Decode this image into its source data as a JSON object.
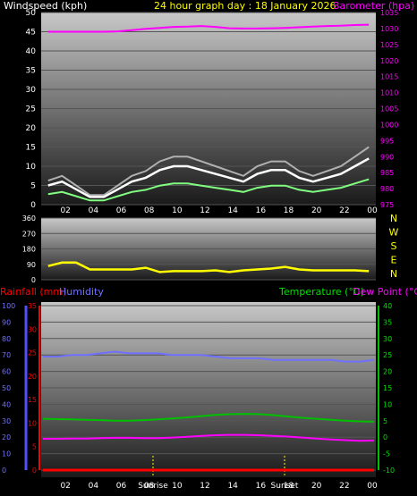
{
  "top": {
    "windspeed_label": "Windspeed (kph)",
    "title": "24 hour graph day : 18 January 2026",
    "barometer_label": "Barometer (hpa)",
    "wind_ticks": [
      "0",
      "5",
      "10",
      "15",
      "20",
      "25",
      "30",
      "35",
      "40",
      "45",
      "50"
    ],
    "baro_ticks": [
      "975",
      "980",
      "985",
      "990",
      "995",
      "1000",
      "1005",
      "1010",
      "1015",
      "1020",
      "1025",
      "1030",
      "1035"
    ],
    "x_ticks": [
      "02",
      "04",
      "06",
      "08",
      "10",
      "12",
      "14",
      "16",
      "18",
      "20",
      "22",
      "00"
    ]
  },
  "middle": {
    "dir_ticks": [
      "0",
      "90",
      "180",
      "270",
      "360"
    ],
    "compass": [
      "N",
      "W",
      "S",
      "E",
      "N"
    ]
  },
  "bottom": {
    "rain_label": "Rainfall (mm)",
    "humidity_label": "Humidity",
    "temp_label": "Temperature (°C)",
    "dew_label": "Dew Point (°C)",
    "hum_ticks": [
      "0",
      "10",
      "20",
      "30",
      "40",
      "50",
      "60",
      "70",
      "80",
      "90",
      "100"
    ],
    "rain_ticks": [
      "0",
      "5",
      "10",
      "15",
      "20",
      "25",
      "30",
      "35"
    ],
    "temp_ticks": [
      "-10",
      "-5",
      "0",
      "5",
      "10",
      "15",
      "20",
      "25",
      "30",
      "35",
      "40"
    ],
    "x_ticks": [
      "02",
      "04",
      "06",
      "08",
      "10",
      "12",
      "14",
      "16",
      "18",
      "20",
      "22",
      "00"
    ],
    "sunrise_label": "Sunrise",
    "sunset_label": "Sunset"
  },
  "colors": {
    "windspeed": "#ffffff",
    "wind_gust": "#b0b0b0",
    "wind_avg": "#80ff80",
    "barometer": "#ff00ff",
    "direction": "#ffff00",
    "rainfall": "#ff0000",
    "humidity": "#7070ff",
    "temperature": "#00c000",
    "dewpoint": "#ff00ff",
    "title": "#ffff00"
  },
  "chart_data": [
    {
      "type": "line",
      "title": "24 hour graph day : 18 January 2026",
      "xlabel": "",
      "ylabel": "Windspeed (kph)",
      "y2label": "Barometer (hpa)",
      "ylim": [
        0,
        50
      ],
      "y2lim": [
        975,
        1035
      ],
      "x": [
        "01",
        "02",
        "03",
        "04",
        "05",
        "06",
        "07",
        "08",
        "09",
        "10",
        "11",
        "12",
        "13",
        "14",
        "15",
        "16",
        "17",
        "18",
        "19",
        "20",
        "21",
        "22",
        "23",
        "00"
      ],
      "series": [
        {
          "name": "Windspeed (kph)",
          "axis": "left",
          "values": [
            5,
            6,
            4,
            2,
            2,
            4,
            6,
            7,
            9,
            10,
            10,
            9,
            8,
            7,
            6,
            8,
            9,
            9,
            7,
            6,
            7,
            8,
            10,
            12
          ]
        },
        {
          "name": "Barometer (hpa)",
          "axis": "right",
          "values": [
            1029.0,
            1029.0,
            1029.0,
            1029.0,
            1029.0,
            1029.1,
            1029.5,
            1029.9,
            1030.2,
            1030.5,
            1030.6,
            1030.8,
            1030.5,
            1030.1,
            1030.0,
            1030.0,
            1030.1,
            1030.2,
            1030.4,
            1030.6,
            1030.8,
            1030.9,
            1031.1,
            1031.2
          ]
        }
      ]
    },
    {
      "type": "line",
      "title": "",
      "ylim": [
        0,
        360
      ],
      "x": [
        "01",
        "02",
        "03",
        "04",
        "05",
        "06",
        "07",
        "08",
        "09",
        "10",
        "11",
        "12",
        "13",
        "14",
        "15",
        "16",
        "17",
        "18",
        "19",
        "20",
        "21",
        "22",
        "23",
        "00"
      ],
      "series": [
        {
          "name": "Wind direction",
          "values": [
            80,
            100,
            100,
            60,
            60,
            60,
            60,
            70,
            45,
            50,
            50,
            50,
            55,
            45,
            55,
            60,
            65,
            75,
            60,
            55,
            55,
            55,
            55,
            50
          ]
        }
      ]
    },
    {
      "type": "line",
      "title": "",
      "ylim_humidity": [
        0,
        100
      ],
      "ylim_rainfall": [
        0,
        35
      ],
      "ylim_temperature": [
        -10,
        40
      ],
      "x": [
        "01",
        "02",
        "03",
        "04",
        "05",
        "06",
        "07",
        "08",
        "09",
        "10",
        "11",
        "12",
        "13",
        "14",
        "15",
        "16",
        "17",
        "18",
        "19",
        "20",
        "21",
        "22",
        "23",
        "00"
      ],
      "series": [
        {
          "name": "Rainfall (mm)",
          "axis": "rainfall",
          "values": [
            0,
            0,
            0,
            0,
            0,
            0,
            0,
            0,
            0,
            0,
            0,
            0,
            0,
            0,
            0,
            0,
            0,
            0,
            0,
            0,
            0,
            0,
            0,
            0
          ]
        },
        {
          "name": "Humidity",
          "axis": "humidity",
          "values": [
            69,
            69,
            70,
            70,
            71,
            72,
            71,
            71,
            71,
            70,
            70,
            70,
            69,
            68,
            68,
            68,
            67,
            67,
            67,
            67,
            67,
            66,
            66,
            67
          ]
        },
        {
          "name": "Temperature (°C)",
          "axis": "temperature",
          "values": [
            5.6,
            5.5,
            5.4,
            5.3,
            5.2,
            5.0,
            5.0,
            5.2,
            5.4,
            5.7,
            6.0,
            6.4,
            6.8,
            7.0,
            7.1,
            7.0,
            6.7,
            6.3,
            5.9,
            5.6,
            5.3,
            5.0,
            4.8,
            4.7
          ]
        },
        {
          "name": "Dew Point (°C)",
          "axis": "temperature",
          "values": [
            -0.5,
            -0.5,
            -0.4,
            -0.4,
            -0.3,
            -0.2,
            -0.2,
            -0.3,
            -0.3,
            -0.1,
            0.1,
            0.4,
            0.6,
            0.7,
            0.7,
            0.6,
            0.4,
            0.2,
            -0.1,
            -0.4,
            -0.7,
            -0.9,
            -1.1,
            -1.0
          ]
        }
      ],
      "annotations": [
        "Sunrise",
        "Sunset"
      ]
    }
  ]
}
